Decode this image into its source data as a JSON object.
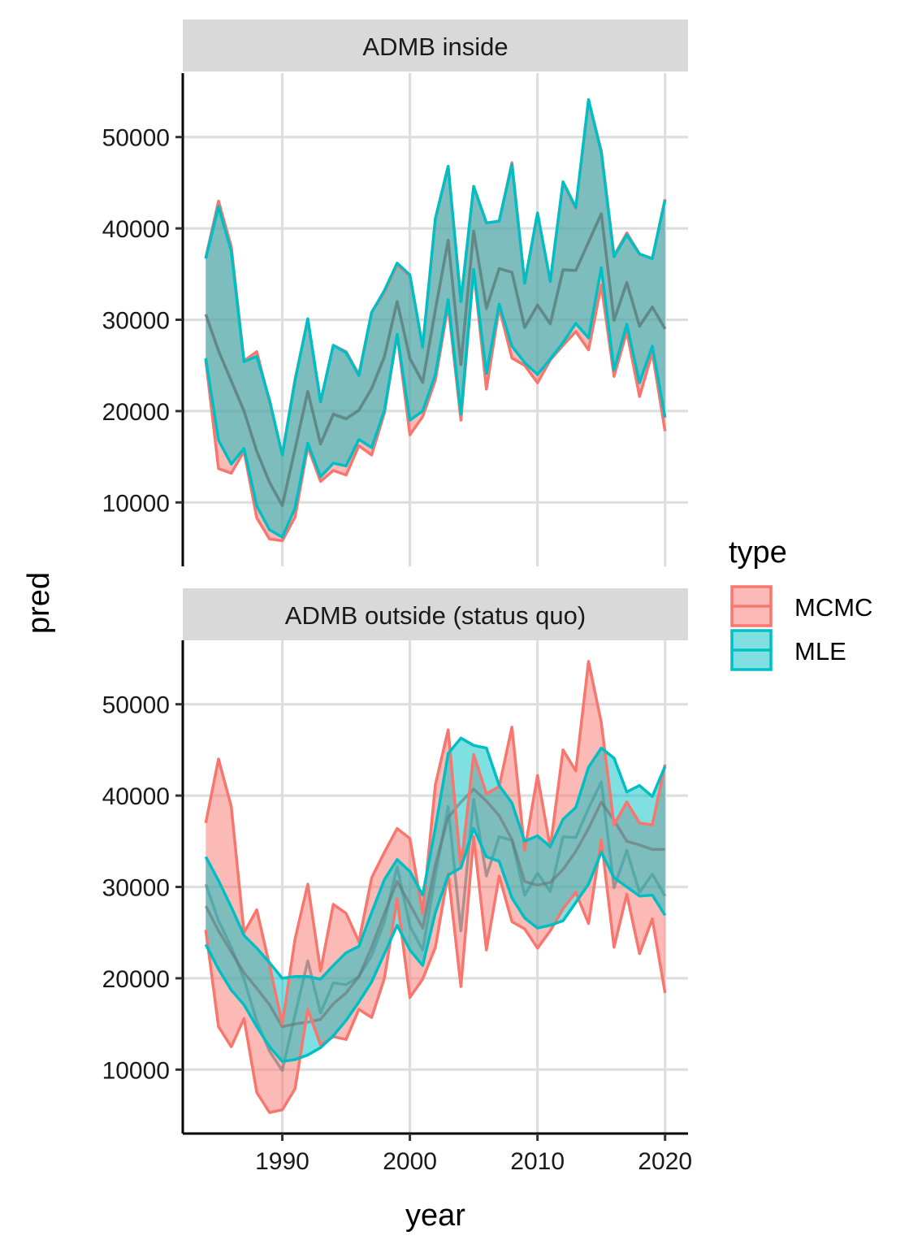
{
  "chart_data": {
    "type": "area",
    "xlabel": "year",
    "ylabel": "pred",
    "x_ticks": [
      1990,
      2000,
      2010,
      2020
    ],
    "y_ticks": [
      10000,
      20000,
      30000,
      40000,
      50000
    ],
    "xlim": [
      1982.2,
      2021.8
    ],
    "ylim": [
      3000,
      57000
    ],
    "grid": true,
    "legend": {
      "title": "type",
      "position": "right",
      "entries": [
        {
          "name": "MCMC",
          "color": "#F8766D"
        },
        {
          "name": "MLE",
          "color": "#00BFC4"
        }
      ]
    },
    "panels": [
      {
        "strip": "ADMB inside",
        "series": [
          {
            "name": "MCMC",
            "years": [
              1984,
              1985,
              1986,
              1987,
              1988,
              1989,
              1990,
              1991,
              1992,
              1993,
              1994,
              1995,
              1996,
              1997,
              1998,
              1999,
              2000,
              2001,
              2002,
              2003,
              2004,
              2005,
              2006,
              2007,
              2008,
              2009,
              2010,
              2011,
              2012,
              2013,
              2014,
              2015,
              2016,
              2017,
              2018,
              2019,
              2020
            ],
            "upper": [
              36800,
              43000,
              38000,
              25500,
              26500,
              21000,
              15200,
              23500,
              30000,
              21000,
              27200,
              26500,
              24000,
              30800,
              33000,
              36000,
              34800,
              27000,
              41000,
              46800,
              32000,
              44600,
              40600,
              40800,
              47200,
              34000,
              41600,
              34200,
              45000,
              42200,
              54000,
              48500,
              37000,
              39500,
              37200,
              36700,
              43200
            ],
            "mid": [
              30600,
              26600,
              23300,
              20000,
              15600,
              12200,
              9600,
              15800,
              22100,
              16400,
              19600,
              19100,
              20100,
              22400,
              25900,
              32000,
              25700,
              23100,
              31100,
              38700,
              25100,
              39700,
              31200,
              35600,
              35200,
              29100,
              31600,
              29500,
              35400,
              35400,
              38500,
              41600,
              29900,
              34000,
              29300,
              31400,
              29000
            ],
            "lower": [
              25600,
              13700,
              13200,
              15600,
              8300,
              6000,
              5800,
              8400,
              16100,
              12300,
              13500,
              13000,
              16200,
              15200,
              19800,
              28400,
              17400,
              19400,
              23400,
              31600,
              19000,
              35500,
              22400,
              31300,
              25800,
              25000,
              23100,
              25600,
              27200,
              28700,
              26700,
              33800,
              23800,
              28700,
              21600,
              26400,
              17800
            ]
          },
          {
            "name": "MLE",
            "years": [
              1984,
              1985,
              1986,
              1987,
              1988,
              1989,
              1990,
              1991,
              1992,
              1993,
              1994,
              1995,
              1996,
              1997,
              1998,
              1999,
              2000,
              2001,
              2002,
              2003,
              2004,
              2005,
              2006,
              2007,
              2008,
              2009,
              2010,
              2011,
              2012,
              2013,
              2014,
              2015,
              2016,
              2017,
              2018,
              2019,
              2020
            ],
            "upper": [
              36700,
              42400,
              37500,
              25400,
              26000,
              21200,
              15200,
              23300,
              30100,
              21000,
              27200,
              26400,
              23900,
              30800,
              33200,
              36200,
              34900,
              27000,
              41100,
              46800,
              32000,
              44600,
              40600,
              40800,
              47000,
              34000,
              41700,
              34200,
              45100,
              42300,
              54100,
              48300,
              36900,
              39300,
              37200,
              36700,
              43100
            ],
            "mid": [
              30600,
              26600,
              23300,
              20000,
              15600,
              12200,
              9700,
              15900,
              22200,
              16400,
              19700,
              19200,
              20100,
              22500,
              26000,
              32000,
              25800,
              23200,
              31100,
              38700,
              25100,
              39700,
              31300,
              35600,
              35200,
              29200,
              31600,
              29600,
              35500,
              35400,
              38500,
              41600,
              30000,
              34100,
              29300,
              31400,
              29000
            ],
            "lower": [
              25800,
              16800,
              14200,
              15900,
              9600,
              7000,
              6200,
              9400,
              16500,
              12800,
              14300,
              14000,
              16900,
              16000,
              20100,
              28400,
              19000,
              20000,
              24000,
              32200,
              19700,
              35500,
              24100,
              31700,
              27100,
              25300,
              24000,
              25700,
              27500,
              29600,
              28000,
              35700,
              24500,
              29500,
              23100,
              27100,
              19300
            ]
          }
        ]
      },
      {
        "strip": "ADMB outside (status quo)",
        "series": [
          {
            "name": "MCMC",
            "years": [
              1984,
              1985,
              1986,
              1987,
              1988,
              1989,
              1990,
              1991,
              1992,
              1993,
              1994,
              1995,
              1996,
              1997,
              1998,
              1999,
              2000,
              2001,
              2002,
              2003,
              2004,
              2005,
              2006,
              2007,
              2008,
              2009,
              2010,
              2011,
              2012,
              2013,
              2014,
              2015,
              2016,
              2017,
              2018,
              2019,
              2020
            ],
            "upper": [
              37000,
              44000,
              38800,
              25000,
              27500,
              21400,
              15000,
              24300,
              30300,
              20800,
              28100,
              27100,
              24000,
              31000,
              33800,
              36400,
              35300,
              27100,
              41200,
              47200,
              32100,
              44500,
              40200,
              41000,
              47500,
              34000,
              42200,
              34300,
              45000,
              42700,
              54700,
              48000,
              36800,
              39300,
              37000,
              36800,
              43400
            ],
            "mid": [
              30300,
              26300,
              23400,
              19900,
              15300,
              12000,
              9900,
              16000,
              21900,
              16200,
              19500,
              19300,
              20200,
              22500,
              26200,
              32200,
              25700,
              23100,
              31300,
              38800,
              25200,
              39600,
              31200,
              35500,
              35100,
              29100,
              31500,
              29500,
              35500,
              35400,
              38600,
              41500,
              29900,
              34000,
              29400,
              31400,
              29000
            ],
            "lower": [
              25300,
              14700,
              12500,
              15600,
              7500,
              5300,
              5600,
              7900,
              16600,
              12700,
              13600,
              13300,
              16600,
              15700,
              20000,
              28700,
              17900,
              19900,
              23400,
              31500,
              19100,
              35500,
              23100,
              31200,
              26200,
              25400,
              23300,
              25200,
              27600,
              29400,
              26000,
              35200,
              23400,
              29200,
              22700,
              26500,
              18400
            ]
          },
          {
            "name": "MLE",
            "years": [
              1984,
              1985,
              1986,
              1987,
              1988,
              1989,
              1990,
              1991,
              1992,
              1993,
              1994,
              1995,
              1996,
              1997,
              1998,
              1999,
              2000,
              2001,
              2002,
              2003,
              2004,
              2005,
              2006,
              2007,
              2008,
              2009,
              2010,
              2011,
              2012,
              2013,
              2014,
              2015,
              2016,
              2017,
              2018,
              2019,
              2020
            ],
            "upper": [
              33300,
              30700,
              27800,
              24700,
              23300,
              21700,
              20000,
              20200,
              20200,
              19900,
              21400,
              22800,
              23500,
              27200,
              30800,
              33000,
              31700,
              29100,
              36500,
              44600,
              46300,
              45500,
              45200,
              41100,
              39200,
              35000,
              35600,
              34400,
              37400,
              38700,
              43100,
              45200,
              44100,
              40400,
              41100,
              39900,
              43200
            ],
            "mid": [
              27900,
              25200,
              22900,
              20600,
              18900,
              17100,
              14700,
              15000,
              15200,
              15500,
              17200,
              18400,
              20200,
              23400,
              27100,
              30600,
              28100,
              25500,
              32500,
              37600,
              39300,
              40700,
              39400,
              37800,
              35200,
              30600,
              30200,
              30500,
              31900,
              33900,
              36400,
              39300,
              37300,
              35000,
              34600,
              34100,
              34100
            ],
            "lower": [
              23700,
              21000,
              18700,
              17100,
              14700,
              12500,
              10900,
              11100,
              11600,
              12400,
              13700,
              15400,
              17400,
              19600,
              22700,
              25800,
              23100,
              21400,
              27200,
              31300,
              32100,
              36400,
              33300,
              32800,
              28800,
              26600,
              25500,
              25800,
              26300,
              28300,
              30300,
              33800,
              31000,
              30000,
              29000,
              29100,
              26900
            ]
          }
        ]
      }
    ]
  }
}
